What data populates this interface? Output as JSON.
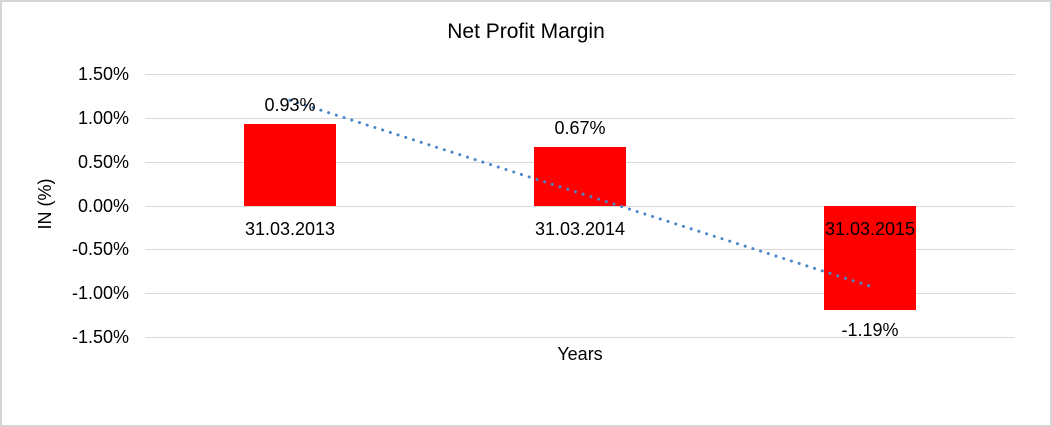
{
  "chart_data": {
    "type": "bar",
    "title": "Net Profit Margin",
    "xlabel": "Years",
    "ylabel": "IN (%)",
    "categories": [
      "31.03.2013",
      "31.03.2014",
      "31.03.2015"
    ],
    "values": [
      0.93,
      0.67,
      -1.19
    ],
    "data_labels": [
      "0.93%",
      "0.67%",
      "-1.19%"
    ],
    "y_ticks": [
      1.5,
      1.0,
      0.5,
      0.0,
      -0.5,
      -1.0,
      -1.5
    ],
    "y_tick_labels": [
      "1.50%",
      "1.00%",
      "0.50%",
      "0.00%",
      "-0.50%",
      "-1.00%",
      "-1.50%"
    ],
    "ylim": [
      -1.5,
      1.5
    ],
    "grid": true,
    "legend": "none",
    "bar_color": "#ff0000",
    "gridline_color": "#d9d9d9",
    "text_color": "#000000",
    "background_color": "#ffffff",
    "frame_color": "#d5d5d5",
    "trendline": {
      "type": "linear",
      "style": "dotted",
      "color": "#4a86c8",
      "endpoint_values_pct": [
        1.2,
        -0.92
      ]
    }
  }
}
